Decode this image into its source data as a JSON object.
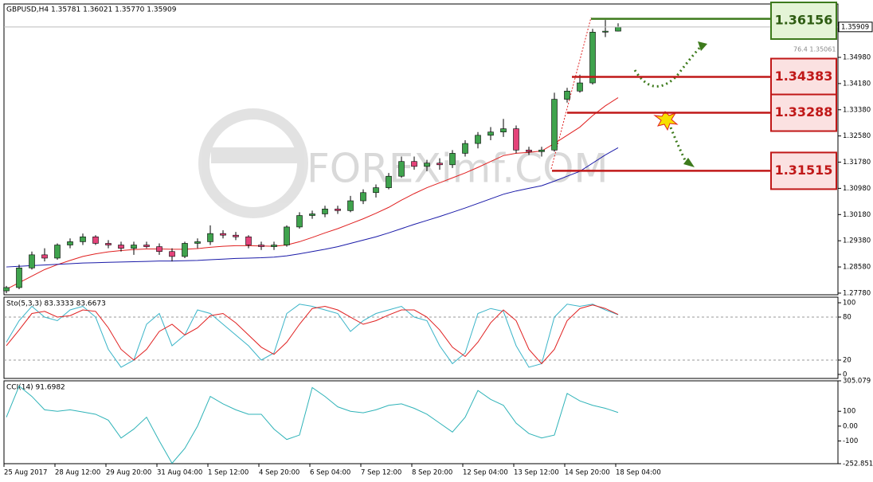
{
  "chart_data": [
    {
      "type": "candlestick",
      "title": "GBPUSD,H4  1.35781 1.36021 1.35770 1.35909",
      "watermark": "FOREXimf.COM",
      "annotation": "76.4 1.35061",
      "categories": [
        "25 Aug 2017",
        null,
        null,
        null,
        "28 Aug 12:00",
        null,
        null,
        null,
        "29 Aug 20:00",
        null,
        null,
        null,
        "31 Aug 04:00",
        null,
        null,
        null,
        "1 Sep 12:00",
        null,
        null,
        null,
        "4 Sep 20:00",
        null,
        null,
        null,
        "6 Sep 04:00",
        null,
        null,
        null,
        "7 Sep 12:00",
        null,
        null,
        null,
        "8 Sep 20:00",
        null,
        null,
        null,
        "12 Sep 04:00",
        null,
        null,
        null,
        "13 Sep 12:00",
        null,
        null,
        null,
        "14 Sep 20:00",
        null,
        null,
        null,
        "18 Sep 04:00"
      ],
      "open": [
        1.2785,
        1.2795,
        1.2855,
        1.2895,
        1.2885,
        1.2925,
        1.2935,
        1.295,
        1.293,
        1.2925,
        1.2915,
        1.2925,
        1.292,
        1.2905,
        1.289,
        1.293,
        1.2935,
        1.296,
        1.2955,
        1.295,
        1.2925,
        1.292,
        1.2925,
        1.298,
        1.3015,
        1.302,
        1.3035,
        1.303,
        1.306,
        1.3085,
        1.31,
        1.3135,
        1.318,
        1.3165,
        1.3175,
        1.317,
        1.3205,
        1.3235,
        1.326,
        1.327,
        1.328,
        1.3215,
        1.321,
        1.3215,
        1.337,
        1.3395,
        1.342,
        1.3575,
        1.35781
      ],
      "high": [
        1.28,
        1.2865,
        1.2905,
        1.2915,
        1.293,
        1.2945,
        1.296,
        1.2955,
        1.294,
        1.2935,
        1.2935,
        1.2935,
        1.293,
        1.2915,
        1.2935,
        1.2945,
        1.2985,
        1.297,
        1.2965,
        1.2955,
        1.2935,
        1.2935,
        1.2985,
        1.3025,
        1.303,
        1.3045,
        1.3045,
        1.3075,
        1.3095,
        1.311,
        1.3145,
        1.3195,
        1.3195,
        1.3185,
        1.319,
        1.3215,
        1.3245,
        1.327,
        1.3285,
        1.331,
        1.329,
        1.3225,
        1.3225,
        1.339,
        1.3405,
        1.3445,
        1.3585,
        1.3612,
        1.36021
      ],
      "low": [
        1.2778,
        1.279,
        1.285,
        1.2875,
        1.288,
        1.2915,
        1.2925,
        1.2925,
        1.2915,
        1.2905,
        1.2895,
        1.2915,
        1.2895,
        1.2875,
        1.2885,
        1.2915,
        1.2925,
        1.2945,
        1.294,
        1.2915,
        1.291,
        1.291,
        1.292,
        1.2975,
        1.3005,
        1.301,
        1.302,
        1.3025,
        1.305,
        1.307,
        1.3095,
        1.313,
        1.3155,
        1.315,
        1.3155,
        1.316,
        1.3195,
        1.322,
        1.3245,
        1.3255,
        1.3205,
        1.32,
        1.3195,
        1.321,
        1.336,
        1.339,
        1.3415,
        1.356,
        1.3577
      ],
      "close": [
        1.2795,
        1.2855,
        1.2895,
        1.2885,
        1.2925,
        1.2935,
        1.295,
        1.293,
        1.2925,
        1.2915,
        1.2925,
        1.292,
        1.2905,
        1.289,
        1.293,
        1.2935,
        1.296,
        1.2955,
        1.295,
        1.2925,
        1.292,
        1.2925,
        1.298,
        1.3015,
        1.302,
        1.3035,
        1.303,
        1.306,
        1.3085,
        1.31,
        1.3135,
        1.318,
        1.3165,
        1.3175,
        1.317,
        1.3205,
        1.3235,
        1.326,
        1.327,
        1.328,
        1.3215,
        1.321,
        1.3215,
        1.337,
        1.3395,
        1.342,
        1.3575,
        1.3578,
        1.35909
      ],
      "up_color": "#3fa34d",
      "down_color": "#e4437a",
      "lines": [
        {
          "color": "#e02020",
          "values": [
            1.279,
            1.281,
            1.283,
            1.285,
            1.2865,
            1.2878,
            1.289,
            1.2898,
            1.2904,
            1.2908,
            1.2911,
            1.2913,
            1.2913,
            1.2912,
            1.2912,
            1.2914,
            1.2918,
            1.2921,
            1.2923,
            1.2923,
            1.2922,
            1.2921,
            1.2925,
            1.2935,
            1.2948,
            1.2962,
            1.2975,
            1.299,
            1.3005,
            1.3022,
            1.304,
            1.3062,
            1.3082,
            1.31,
            1.3115,
            1.313,
            1.3145,
            1.3162,
            1.318,
            1.3198,
            1.3205,
            1.3208,
            1.3212,
            1.3235,
            1.326,
            1.3285,
            1.332,
            1.335,
            1.3375
          ]
        },
        {
          "color": "#1a1aa8",
          "values": [
            1.2858,
            1.286,
            1.2862,
            1.2864,
            1.2866,
            1.2868,
            1.287,
            1.2871,
            1.2872,
            1.2873,
            1.2874,
            1.2875,
            1.2876,
            1.2876,
            1.2877,
            1.2878,
            1.288,
            1.2882,
            1.2884,
            1.2885,
            1.2886,
            1.2888,
            1.2892,
            1.2898,
            1.2905,
            1.2912,
            1.292,
            1.293,
            1.294,
            1.295,
            1.2962,
            1.2975,
            1.2988,
            1.3,
            1.3012,
            1.3025,
            1.3038,
            1.3052,
            1.3066,
            1.308,
            1.309,
            1.3098,
            1.3106,
            1.312,
            1.3135,
            1.315,
            1.3175,
            1.32,
            1.3222
          ]
        }
      ],
      "levels": [
        {
          "value": 1.36156,
          "color": "#3d7a1c",
          "box_fill": "#e4f4d6"
        },
        {
          "value": 1.34383,
          "color": "#c01818",
          "box_fill": "#fbe1e1"
        },
        {
          "value": 1.33288,
          "color": "#c01818",
          "box_fill": "#fbe1e1"
        },
        {
          "value": 1.31515,
          "color": "#c01818",
          "box_fill": "#fbe1e1"
        }
      ],
      "last_price": 1.35909,
      "ylim": [
        1.2773,
        1.3661
      ],
      "yticks": [
        {
          "value": 1.3498,
          "label": "1.34980"
        },
        {
          "value": 1.3418,
          "label": "1.34180"
        },
        {
          "value": 1.3338,
          "label": "1.33380"
        },
        {
          "value": 1.3258,
          "label": "1.32580"
        },
        {
          "value": 1.3178,
          "label": "1.31780"
        },
        {
          "value": 1.3098,
          "label": "1.30980"
        },
        {
          "value": 1.3018,
          "label": "1.30180"
        },
        {
          "value": 1.2938,
          "label": "1.29380"
        },
        {
          "value": 1.2858,
          "label": "1.28580"
        },
        {
          "value": 1.2778,
          "label": "1.27780"
        }
      ]
    },
    {
      "type": "line",
      "title": "Sto(5,3,3) 83.3333 83.6673",
      "lines": [
        {
          "color": "#3ab4c8",
          "values": [
            45,
            75,
            95,
            80,
            75,
            90,
            95,
            80,
            35,
            10,
            20,
            70,
            85,
            40,
            55,
            90,
            85,
            70,
            55,
            40,
            20,
            30,
            85,
            98,
            95,
            90,
            85,
            60,
            75,
            85,
            90,
            95,
            80,
            75,
            40,
            15,
            30,
            85,
            92,
            88,
            40,
            10,
            15,
            80,
            98,
            95,
            98,
            90,
            83.3333
          ]
        },
        {
          "color": "#e02020",
          "values": [
            40,
            62,
            85,
            88,
            80,
            82,
            90,
            88,
            65,
            35,
            20,
            35,
            60,
            70,
            55,
            65,
            82,
            85,
            72,
            55,
            38,
            28,
            45,
            70,
            92,
            95,
            90,
            80,
            70,
            75,
            83,
            90,
            90,
            80,
            62,
            38,
            25,
            45,
            72,
            90,
            75,
            35,
            15,
            35,
            75,
            92,
            97,
            92,
            83.6673
          ]
        }
      ],
      "levels": [
        80,
        20
      ],
      "ylim": [
        -5.6,
        107.8
      ],
      "yticks": [
        100,
        80,
        20,
        0
      ]
    },
    {
      "type": "line",
      "title": "CCI(14) 91.6982",
      "lines": [
        {
          "color": "#2fb3b8",
          "values": [
            60,
            270,
            200,
            110,
            100,
            110,
            95,
            80,
            40,
            -80,
            -20,
            60,
            -100,
            -250,
            -150,
            0,
            200,
            150,
            110,
            80,
            80,
            -20,
            -90,
            -60,
            260,
            200,
            130,
            100,
            90,
            110,
            140,
            150,
            120,
            80,
            20,
            -40,
            60,
            240,
            180,
            140,
            20,
            -50,
            -80,
            -60,
            220,
            170,
            140,
            120,
            91.6982
          ]
        }
      ],
      "ylim": [
        -252.851,
        305.079
      ],
      "yticks": [
        305.079,
        100,
        {
          "value": 0,
          "label": "0.00"
        },
        -100,
        -252.851
      ]
    }
  ]
}
